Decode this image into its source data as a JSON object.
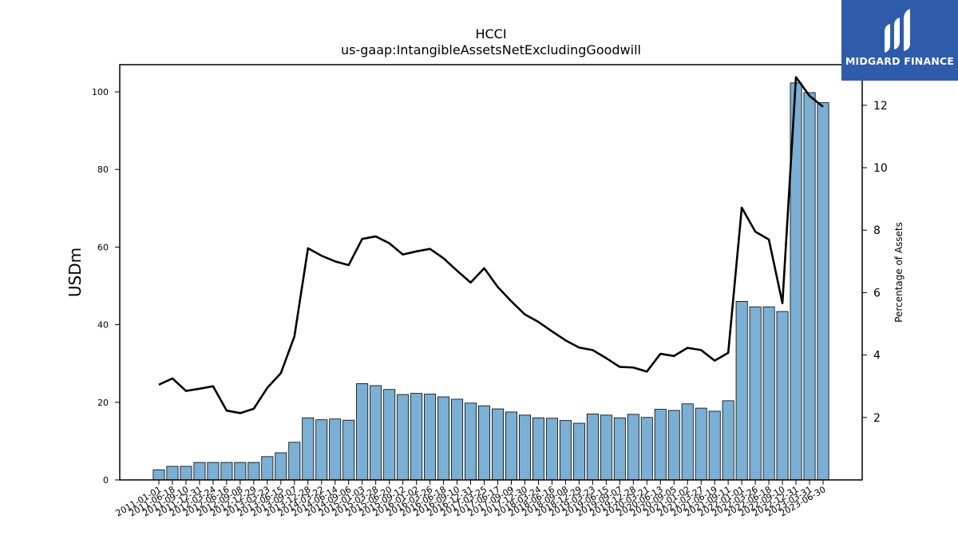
{
  "chart_data": {
    "type": "bar",
    "title": "HCCI",
    "subtitle": "us-gaap:IntangibleAssetsNetExcludingGoodwill",
    "ylabel": "USDm",
    "y2label": "Percentage of Assets",
    "ylim": [
      0,
      107
    ],
    "y2lim": [
      0,
      13.3
    ],
    "yticks": [
      0,
      20,
      40,
      60,
      80,
      100
    ],
    "y2ticks": [
      2,
      4,
      6,
      8,
      10,
      12
    ],
    "grid": false,
    "categories": [
      "2011-01-01",
      "2011-06-18",
      "2011-09-10",
      "2011-12-31",
      "2012-03-24",
      "2012-06-16",
      "2012-09-08",
      "2012-12-29",
      "2013-03-23",
      "2013-06-15",
      "2013-09-07",
      "2013-12-28",
      "2014-03-22",
      "2014-06-14",
      "2014-09-06",
      "2015-01-03",
      "2015-03-28",
      "2015-06-20",
      "2015-09-12",
      "2016-01-02",
      "2016-03-26",
      "2016-06-18",
      "2016-09-10",
      "2016-12-31",
      "2017-03-25",
      "2017-06-17",
      "2017-09-09",
      "2017-12-30",
      "2018-03-24",
      "2018-06-16",
      "2018-09-08",
      "2018-12-29",
      "2019-03-23",
      "2019-06-15",
      "2019-09-07",
      "2019-12-28",
      "2020-03-21",
      "2020-06-13",
      "2020-09-05",
      "2021-01-02",
      "2021-03-27",
      "2021-06-19",
      "2021-09-11",
      "2022-01-01",
      "2022-03-26",
      "2022-06-18",
      "2022-09-10",
      "2022-12-31",
      "2023-03-31",
      "2023-06-30"
    ],
    "series": [
      {
        "kind": "bar",
        "axis": "left",
        "color": "#7bafd4",
        "values": [
          2.6,
          3.5,
          3.5,
          4.5,
          4.5,
          4.5,
          4.5,
          4.5,
          6.0,
          7.0,
          9.7,
          16.0,
          15.5,
          15.7,
          15.4,
          24.8,
          24.3,
          23.3,
          22.0,
          22.3,
          22.1,
          21.4,
          20.8,
          19.8,
          19.1,
          18.3,
          17.5,
          16.7,
          16.0,
          15.9,
          15.3,
          14.6,
          17.0,
          16.7,
          16.0,
          16.9,
          16.1,
          18.2,
          17.9,
          19.6,
          18.5,
          17.7,
          20.4,
          46.0,
          44.6,
          44.6,
          43.4,
          102.3,
          99.8,
          97.2
        ]
      },
      {
        "kind": "line",
        "axis": "right",
        "color": "#000000",
        "values": [
          3.05,
          3.25,
          2.85,
          2.92,
          3.0,
          2.22,
          2.14,
          2.28,
          2.95,
          3.42,
          4.6,
          7.42,
          7.18,
          7.0,
          6.88,
          7.72,
          7.8,
          7.58,
          7.22,
          7.32,
          7.4,
          7.1,
          6.7,
          6.32,
          6.78,
          6.18,
          5.72,
          5.3,
          5.06,
          4.76,
          4.47,
          4.24,
          4.16,
          3.9,
          3.62,
          3.6,
          3.47,
          4.04,
          3.97,
          4.23,
          4.16,
          3.82,
          4.07,
          8.72,
          7.95,
          7.7,
          5.66,
          12.9,
          12.3,
          11.95
        ]
      }
    ]
  },
  "logo": {
    "text": "MIDGARD FINANCE",
    "icon": "midgard-logo-mark-icon",
    "bg": "#2e5caa"
  }
}
